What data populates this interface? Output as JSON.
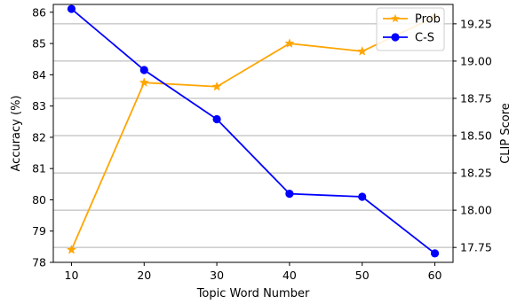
{
  "chart_data": {
    "type": "line",
    "x": [
      10,
      20,
      30,
      40,
      50,
      60
    ],
    "xlabel": "Topic Word Number",
    "xlim": [
      7.5,
      62.5
    ],
    "x_ticks": [
      "10",
      "20",
      "30",
      "40",
      "50",
      "60"
    ],
    "left_axis": {
      "label": "Accuracy (%)",
      "ylim": [
        78.0,
        86.25
      ],
      "ticks": [
        "78",
        "79",
        "80",
        "81",
        "82",
        "83",
        "84",
        "85",
        "86"
      ]
    },
    "right_axis": {
      "label": "CLIP Score",
      "ylim": [
        17.65,
        19.38
      ],
      "ticks": [
        "17.75",
        "18.00",
        "18.25",
        "18.50",
        "18.75",
        "19.00",
        "19.25"
      ]
    },
    "grid": "horizontal, at right-axis ticks",
    "legend_position": "top-right",
    "series": [
      {
        "name": "Prob",
        "axis": "left",
        "color": "#ffa500",
        "marker": "star",
        "values": [
          78.4,
          83.75,
          83.62,
          85.0,
          84.75,
          85.85
        ]
      },
      {
        "name": "C-S",
        "axis": "right",
        "color": "#0000ff",
        "marker": "circle",
        "values": [
          19.35,
          18.94,
          18.61,
          18.11,
          18.09,
          17.71
        ]
      }
    ]
  }
}
